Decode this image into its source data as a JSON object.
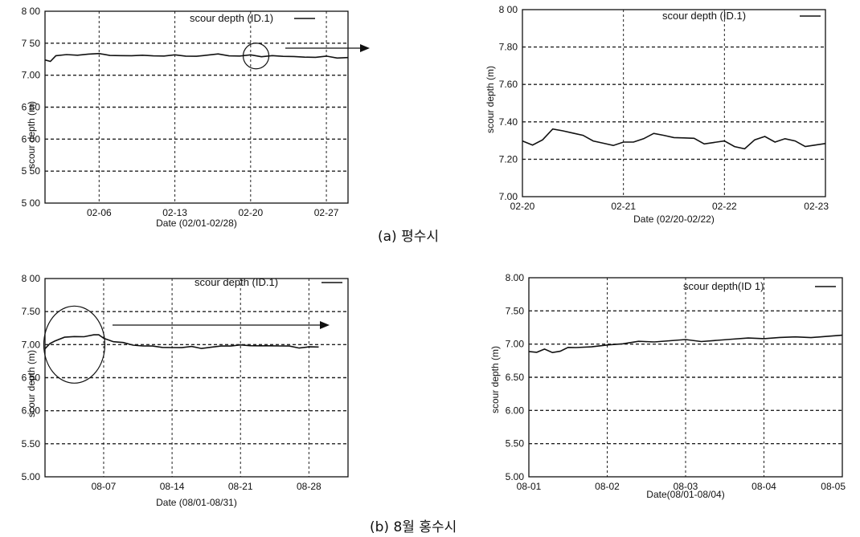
{
  "captions": {
    "a": "(a) 평수시",
    "b": "(b) 8월 홍수시"
  },
  "colors": {
    "line": "#111111",
    "grid": "#222222",
    "background": "#ffffff"
  },
  "chart_data": [
    {
      "id": "a_left",
      "type": "line",
      "legend": "scour depth (ID.1)",
      "xlabel": "Date (02/01-02/28)",
      "ylabel": "scour depth (m)",
      "xlim": [
        1,
        29
      ],
      "ylim": [
        5.0,
        8.0
      ],
      "xticks": [
        {
          "x": 6,
          "label": "02-06"
        },
        {
          "x": 13,
          "label": "02-13"
        },
        {
          "x": 20,
          "label": "02-20"
        },
        {
          "x": 27,
          "label": "02-27"
        }
      ],
      "yticks": [
        {
          "y": 8.0,
          "label": "8 00"
        },
        {
          "y": 7.5,
          "label": "7 50"
        },
        {
          "y": 7.0,
          "label": "7.00"
        },
        {
          "y": 6.5,
          "label": "6 50"
        },
        {
          "y": 6.0,
          "label": "6 00"
        },
        {
          "y": 5.5,
          "label": "5 50"
        },
        {
          "y": 5.0,
          "label": "5 00"
        }
      ],
      "grid": true,
      "circle_annotation": {
        "x": 20.5,
        "y": 7.3
      },
      "arrow_annotation": true,
      "series": [
        {
          "x": [
            1,
            1.5,
            2,
            3,
            4,
            5,
            6,
            7,
            8,
            9,
            10,
            11,
            12,
            13,
            14,
            15,
            16,
            17,
            18,
            19,
            20,
            21,
            22,
            23,
            24,
            25,
            26,
            27,
            28,
            29
          ],
          "values": [
            7.25,
            7.22,
            7.3,
            7.31,
            7.32,
            7.33,
            7.33,
            7.32,
            7.31,
            7.3,
            7.3,
            7.31,
            7.3,
            7.31,
            7.31,
            7.3,
            7.31,
            7.32,
            7.31,
            7.3,
            7.31,
            7.3,
            7.31,
            7.29,
            7.28,
            7.29,
            7.28,
            7.29,
            7.28,
            7.28
          ]
        }
      ]
    },
    {
      "id": "a_right",
      "type": "line",
      "legend": "scour depth (ID.1)",
      "xlabel": "Date (02/20-02/22)",
      "ylabel": "scour depth (m)",
      "xlim": [
        0,
        3
      ],
      "ylim": [
        7.0,
        8.0
      ],
      "xticks": [
        {
          "x": 0,
          "label": "02-20"
        },
        {
          "x": 1,
          "label": "02-21"
        },
        {
          "x": 2,
          "label": "02-22"
        },
        {
          "x": 3,
          "label": "02-23"
        }
      ],
      "yticks": [
        {
          "y": 8.0,
          "label": "8 00"
        },
        {
          "y": 7.8,
          "label": "7.80"
        },
        {
          "y": 7.6,
          "label": "7.60"
        },
        {
          "y": 7.4,
          "label": "7.40"
        },
        {
          "y": 7.2,
          "label": "7.20"
        },
        {
          "y": 7.0,
          "label": "7.00"
        }
      ],
      "grid": true,
      "series": [
        {
          "x": [
            0,
            0.1,
            0.2,
            0.3,
            0.4,
            0.5,
            0.6,
            0.7,
            0.8,
            0.9,
            1.0,
            1.1,
            1.2,
            1.3,
            1.4,
            1.5,
            1.6,
            1.7,
            1.8,
            1.9,
            2.0,
            2.1,
            2.2,
            2.3,
            2.4,
            2.5,
            2.6,
            2.7,
            2.8,
            2.9,
            3.0
          ],
          "values": [
            7.31,
            7.28,
            7.3,
            7.35,
            7.36,
            7.34,
            7.32,
            7.31,
            7.29,
            7.27,
            7.28,
            7.3,
            7.31,
            7.33,
            7.34,
            7.32,
            7.31,
            7.3,
            7.29,
            7.29,
            7.29,
            7.28,
            7.26,
            7.3,
            7.31,
            7.3,
            7.31,
            7.29,
            7.28,
            7.28,
            7.28
          ]
        }
      ]
    },
    {
      "id": "b_left",
      "type": "line",
      "legend": "scour depth (ID.1)",
      "xlabel": "Date (08/01-08/31)",
      "ylabel": "scour depth (m)",
      "xlim": [
        1,
        32
      ],
      "ylim": [
        5.0,
        8.0
      ],
      "xticks": [
        {
          "x": 7,
          "label": "08-07"
        },
        {
          "x": 14,
          "label": "08-14"
        },
        {
          "x": 21,
          "label": "08-21"
        },
        {
          "x": 28,
          "label": "08-28"
        }
      ],
      "yticks": [
        {
          "y": 8.0,
          "label": "8 00"
        },
        {
          "y": 7.5,
          "label": "7.50"
        },
        {
          "y": 7.0,
          "label": "7.00"
        },
        {
          "y": 6.5,
          "label": "6 50"
        },
        {
          "y": 6.0,
          "label": "6.00"
        },
        {
          "y": 5.5,
          "label": "5.50"
        },
        {
          "y": 5.0,
          "label": "5.00"
        }
      ],
      "grid": true,
      "circle_annotation": {
        "x": 4,
        "y": 7.0
      },
      "arrow_annotation": true,
      "series": [
        {
          "x": [
            1,
            1.5,
            2,
            3,
            4,
            5,
            6,
            6.5,
            7,
            8,
            9,
            10,
            11,
            12,
            13,
            14,
            15,
            16,
            17,
            18,
            19,
            20,
            21,
            22,
            23,
            24,
            25,
            26,
            27,
            28,
            29
          ],
          "values": [
            6.95,
            7.02,
            7.05,
            7.1,
            7.13,
            7.12,
            7.14,
            7.16,
            7.1,
            7.04,
            7.02,
            7.0,
            6.98,
            6.97,
            6.97,
            6.96,
            6.95,
            6.96,
            6.95,
            6.96,
            6.97,
            6.99,
            7.0,
            6.98,
            6.97,
            6.99,
            6.98,
            6.97,
            6.96,
            6.97,
            6.96
          ]
        }
      ]
    },
    {
      "id": "b_right",
      "type": "line",
      "legend": "scour depth(ID 1)",
      "xlabel": "Date(08/01-08/04)",
      "ylabel": "scour depth (m)",
      "xlim": [
        1,
        5
      ],
      "ylim": [
        5.0,
        8.0
      ],
      "xticks": [
        {
          "x": 1,
          "label": "08-01"
        },
        {
          "x": 2,
          "label": "08-02"
        },
        {
          "x": 3,
          "label": "08-03"
        },
        {
          "x": 4,
          "label": "08-04"
        },
        {
          "x": 5,
          "label": "08-05"
        }
      ],
      "yticks": [
        {
          "y": 8.0,
          "label": "8.00"
        },
        {
          "y": 7.5,
          "label": "7.50"
        },
        {
          "y": 7.0,
          "label": "7.00"
        },
        {
          "y": 6.5,
          "label": "6.50"
        },
        {
          "y": 6.0,
          "label": "6.00"
        },
        {
          "y": 5.5,
          "label": "5.50"
        },
        {
          "y": 5.0,
          "label": "5.00"
        }
      ],
      "grid": true,
      "series": [
        {
          "x": [
            1,
            1.1,
            1.2,
            1.3,
            1.4,
            1.5,
            1.6,
            1.8,
            2.0,
            2.2,
            2.4,
            2.6,
            2.8,
            3.0,
            3.2,
            3.4,
            3.6,
            3.8,
            4.0,
            4.2,
            4.4,
            4.6,
            4.8,
            5.0
          ],
          "values": [
            6.9,
            6.88,
            6.92,
            6.86,
            6.9,
            6.95,
            6.94,
            6.97,
            6.99,
            7.0,
            7.03,
            7.04,
            7.05,
            7.06,
            7.05,
            7.06,
            7.07,
            7.08,
            7.09,
            7.1,
            7.1,
            7.11,
            7.12,
            7.13
          ]
        }
      ]
    }
  ]
}
